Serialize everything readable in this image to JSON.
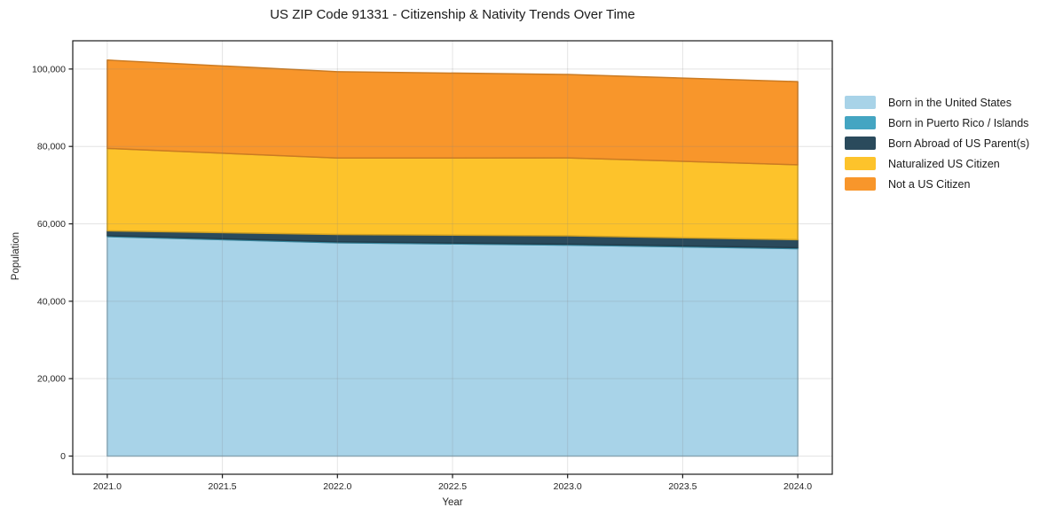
{
  "title": "US ZIP Code 91331 - Citizenship & Nativity Trends Over Time",
  "chart_data": {
    "type": "area",
    "stacked": true,
    "title": "US ZIP Code 91331 - Citizenship & Nativity Trends Over Time",
    "xlabel": "Year",
    "ylabel": "Population",
    "x": [
      2021,
      2022,
      2023,
      2024
    ],
    "series": [
      {
        "name": "Born in the United States",
        "color": "#A8D3E8",
        "values": [
          56700,
          55100,
          54500,
          53600
        ]
      },
      {
        "name": "Born in Puerto Rico / Islands",
        "color": "#44A5C2",
        "values": [
          250,
          250,
          250,
          250
        ]
      },
      {
        "name": "Born Abroad of US Parent(s)",
        "color": "#2A4A5C",
        "values": [
          1250,
          1900,
          2150,
          2050
        ]
      },
      {
        "name": "Naturalized US Citizen",
        "color": "#FDC32B",
        "values": [
          21300,
          19750,
          20150,
          19350
        ]
      },
      {
        "name": "Not a US Citizen",
        "color": "#F8962B",
        "values": [
          22800,
          22300,
          21550,
          21500
        ]
      }
    ],
    "x_ticks": [
      "2021.0",
      "2021.5",
      "2022.0",
      "2022.5",
      "2023.0",
      "2023.5",
      "2024.0"
    ],
    "y_ticks": [
      "0",
      "20,000",
      "40,000",
      "60,000",
      "80,000",
      "100,000"
    ],
    "xlim": [
      2020.85,
      2024.15
    ],
    "ylim": [
      -4700,
      107300
    ],
    "grid": true,
    "legend_position": "right"
  }
}
